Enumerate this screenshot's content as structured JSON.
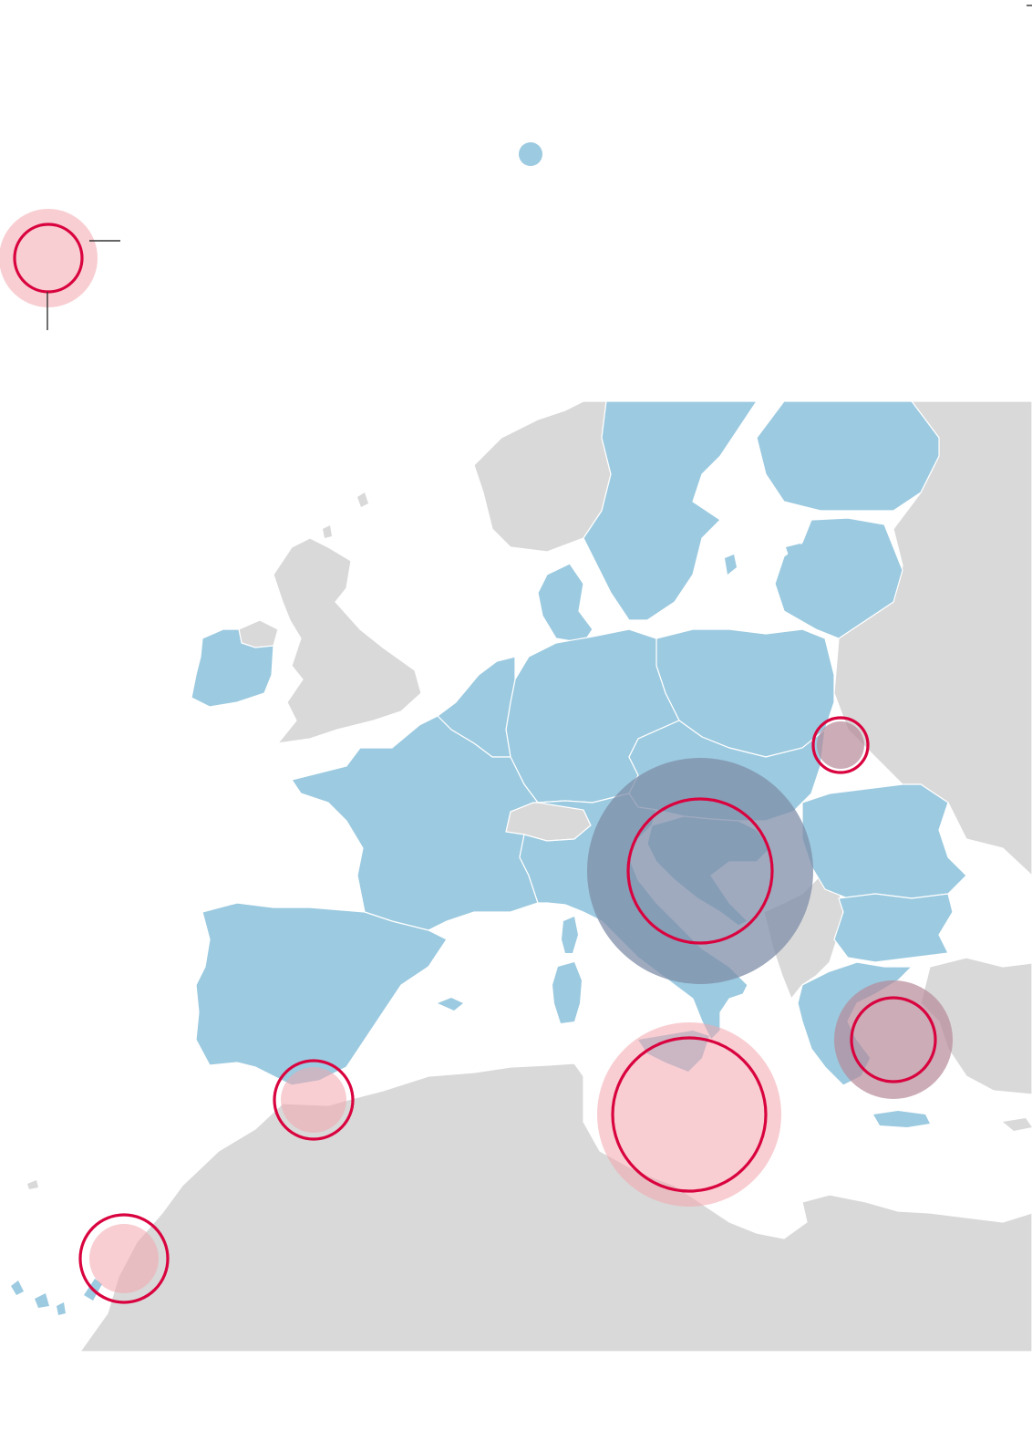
{
  "map": {
    "colors": {
      "eu_member": "#9ccae0",
      "non_member": "#d9d9d9",
      "previous_period_fill": "#f3a6ad",
      "current_period_ring": "#d9043f",
      "sea": "#ffffff"
    },
    "legend": {
      "eu_swatch": "eu-member-dot",
      "size_example": "circle-size-example"
    },
    "migration_routes": [
      {
        "name": "canary-islands",
        "halo_relative": 0.8,
        "ring_relative": 1.0
      },
      {
        "name": "western-mediterranean",
        "halo_relative": 0.8,
        "ring_relative": 1.0
      },
      {
        "name": "central-mediterranean",
        "halo_relative": 1.0,
        "ring_relative": 0.84
      },
      {
        "name": "western-balkans",
        "halo_relative": 1.0,
        "ring_relative": 0.64
      },
      {
        "name": "eastern-mediterranean",
        "halo_relative": 1.0,
        "ring_relative": 0.72
      },
      {
        "name": "eastern-land-border",
        "halo_relative": 0.9,
        "ring_relative": 1.0
      }
    ]
  }
}
